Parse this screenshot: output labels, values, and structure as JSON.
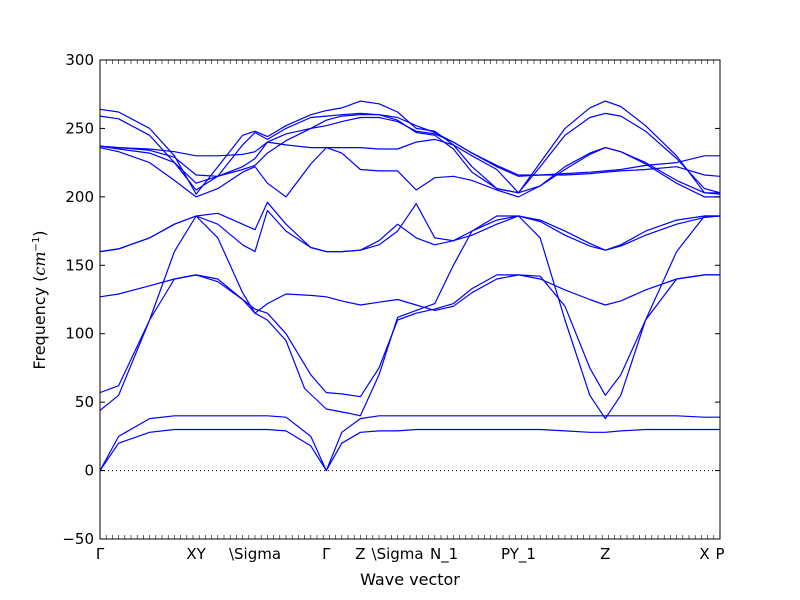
{
  "chart_data": {
    "type": "line",
    "xlabel": "Wave vector",
    "ylabel": "Frequency (",
    "ylabel_unit_base": "cm",
    "ylabel_unit_exp": "−1",
    "ylabel_close": ")",
    "ylim": [
      -50,
      300
    ],
    "yticks": [
      -50,
      0,
      50,
      100,
      150,
      200,
      250,
      300
    ],
    "xlim": [
      0,
      100
    ],
    "xticks": [
      {
        "label": "Γ",
        "x": 0
      },
      {
        "label": "XY",
        "x": 15.5
      },
      {
        "label": "\\Sigma",
        "x": 25.0
      },
      {
        "label": "Γ",
        "x": 36.5
      },
      {
        "label": "Z",
        "x": 42.0
      },
      {
        "label": "\\Sigma",
        "x": 48.0
      },
      {
        "label": "N_1",
        "x": 55.5
      },
      {
        "label": "PY_1",
        "x": 67.5
      },
      {
        "label": "Z",
        "x": 81.5
      },
      {
        "label": "X",
        "x": 97.5
      },
      {
        "label": "P",
        "x": 100
      }
    ],
    "zero_line": 0,
    "line_color": "#0000ff",
    "series": [
      {
        "x": [
          0,
          3,
          8,
          12,
          15.5,
          19,
          23,
          25,
          27,
          30,
          34,
          36.5,
          39,
          42,
          45,
          48,
          51,
          54,
          57,
          60,
          64,
          67.5,
          71,
          75,
          79,
          81.5,
          84,
          88,
          93,
          97.5,
          100
        ],
        "y": [
          0,
          20,
          28,
          30,
          30,
          30,
          30,
          30,
          30,
          29,
          18,
          0,
          20,
          28,
          29,
          29,
          30,
          30,
          30,
          30,
          30,
          30,
          30,
          29,
          28,
          28,
          29,
          30,
          30,
          30,
          30
        ]
      },
      {
        "x": [
          0,
          3,
          8,
          12,
          15.5,
          19,
          23,
          25,
          27,
          30,
          34,
          36.5,
          39,
          42,
          45,
          48,
          51,
          54,
          57,
          60,
          64,
          67.5,
          71,
          75,
          79,
          81.5,
          84,
          88,
          93,
          97.5,
          100
        ],
        "y": [
          0,
          25,
          38,
          40,
          40,
          40,
          40,
          40,
          40,
          39,
          25,
          0,
          28,
          38,
          40,
          40,
          40,
          40,
          40,
          40,
          40,
          40,
          40,
          40,
          40,
          40,
          40,
          40,
          40,
          39,
          39
        ]
      },
      {
        "x": [
          0,
          3,
          8,
          12,
          15.5,
          19,
          23,
          25,
          27,
          30,
          33,
          36.5,
          40,
          42,
          45,
          48,
          51,
          54,
          57,
          60,
          64,
          67.5,
          71,
          75,
          79,
          81.5,
          84,
          88,
          93,
          97.5,
          100
        ],
        "y": [
          44,
          55,
          110,
          160,
          186,
          170,
          130,
          115,
          110,
          95,
          60,
          45,
          42,
          40,
          70,
          112,
          117,
          122,
          150,
          175,
          186,
          186,
          170,
          110,
          55,
          38,
          55,
          110,
          160,
          186,
          186
        ]
      },
      {
        "x": [
          0,
          3,
          8,
          12,
          15.5,
          19,
          23,
          25,
          27,
          30,
          34,
          36.5,
          39,
          42,
          45,
          48,
          51,
          54,
          57,
          60,
          64,
          67.5,
          71,
          75,
          79,
          81.5,
          84,
          88,
          93,
          97.5,
          100
        ],
        "y": [
          57,
          62,
          110,
          140,
          143,
          140,
          125,
          118,
          115,
          100,
          70,
          57,
          56,
          54,
          75,
          110,
          115,
          118,
          122,
          133,
          143,
          143,
          142,
          120,
          75,
          55,
          70,
          110,
          140,
          143,
          143
        ]
      },
      {
        "x": [
          0,
          3,
          8,
          12,
          15.5,
          19,
          23,
          25,
          27,
          30,
          34,
          36.5,
          39,
          42,
          45,
          48,
          51,
          54,
          57,
          60,
          64,
          67.5,
          71,
          75,
          79,
          81.5,
          84,
          88,
          93,
          97.5,
          100
        ],
        "y": [
          127,
          129,
          135,
          140,
          143,
          138,
          125,
          115,
          122,
          129,
          128,
          127,
          124,
          121,
          123,
          125,
          121,
          117,
          120,
          130,
          140,
          143,
          140,
          132,
          125,
          121,
          124,
          132,
          140,
          143,
          143
        ]
      },
      {
        "x": [
          0,
          3,
          8,
          12,
          15.5,
          19,
          23,
          25,
          27,
          30,
          34,
          36.5,
          39,
          42,
          45,
          48,
          51,
          54,
          57,
          60,
          64,
          67.5,
          71,
          75,
          79,
          81.5,
          84,
          88,
          93,
          97.5,
          100
        ],
        "y": [
          160,
          162,
          170,
          180,
          186,
          180,
          165,
          160,
          190,
          175,
          163,
          160,
          160,
          161,
          165,
          175,
          195,
          170,
          168,
          172,
          180,
          186,
          182,
          172,
          164,
          161,
          164,
          172,
          180,
          185,
          186
        ]
      },
      {
        "x": [
          0,
          3,
          8,
          12,
          15.5,
          19,
          23,
          25,
          27,
          30,
          34,
          36.5,
          39,
          42,
          45,
          48,
          51,
          54,
          57,
          60,
          64,
          67.5,
          71,
          75,
          79,
          81.5,
          84,
          88,
          93,
          97.5,
          100
        ],
        "y": [
          160,
          162,
          170,
          180,
          186,
          188,
          180,
          176,
          196,
          180,
          163,
          160,
          160,
          161,
          168,
          180,
          170,
          165,
          168,
          175,
          183,
          186,
          183,
          175,
          166,
          161,
          165,
          175,
          183,
          186,
          186
        ]
      },
      {
        "x": [
          0,
          3,
          8,
          12,
          15.5,
          19,
          23,
          25,
          27,
          30,
          34,
          36.5,
          39,
          42,
          45,
          48,
          51,
          54,
          57,
          60,
          64,
          67.5,
          71,
          75,
          79,
          81.5,
          84,
          88,
          93,
          97.5,
          100
        ],
        "y": [
          236,
          233,
          225,
          212,
          200,
          206,
          218,
          222,
          210,
          200,
          224,
          236,
          232,
          220,
          219,
          219,
          205,
          214,
          215,
          212,
          205,
          200,
          208,
          220,
          231,
          236,
          233,
          224,
          210,
          200,
          200
        ]
      },
      {
        "x": [
          0,
          3,
          8,
          12,
          15.5,
          19,
          23,
          25,
          27,
          30,
          34,
          36.5,
          39,
          42,
          45,
          48,
          51,
          54,
          57,
          60,
          64,
          67.5,
          71,
          75,
          79,
          81.5,
          84,
          88,
          93,
          97.5,
          100
        ],
        "y": [
          237,
          235,
          232,
          225,
          210,
          215,
          222,
          228,
          240,
          238,
          236,
          236,
          236,
          236,
          235,
          235,
          240,
          242,
          238,
          230,
          220,
          203,
          208,
          222,
          232,
          236,
          233,
          225,
          212,
          203,
          202
        ]
      },
      {
        "x": [
          0,
          3,
          8,
          12,
          15.5,
          19,
          23,
          25,
          27,
          30,
          34,
          36.5,
          39,
          42,
          45,
          48,
          51,
          54,
          57,
          60,
          64,
          67.5,
          71,
          75,
          79,
          81.5,
          84,
          88,
          93,
          97.5,
          100
        ],
        "y": [
          237,
          236,
          235,
          233,
          230,
          230,
          231,
          233,
          240,
          246,
          250,
          252,
          255,
          258,
          258,
          255,
          248,
          246,
          240,
          232,
          223,
          216,
          216,
          217,
          218,
          219,
          220,
          223,
          225,
          230,
          230
        ]
      },
      {
        "x": [
          0,
          3,
          8,
          12,
          15.5,
          19,
          23,
          25,
          27,
          30,
          34,
          36.5,
          39,
          42,
          45,
          48,
          51,
          54,
          57,
          60,
          64,
          67.5,
          71,
          75,
          79,
          81.5,
          84,
          88,
          93,
          97.5,
          100
        ],
        "y": [
          237,
          236,
          234,
          229,
          216,
          215,
          220,
          223,
          232,
          241,
          250,
          256,
          259,
          260,
          260,
          258,
          252,
          247,
          240,
          232,
          222,
          215,
          216,
          216,
          217,
          218,
          219,
          220,
          222,
          216,
          215
        ]
      },
      {
        "x": [
          0,
          3,
          8,
          12,
          15.5,
          19,
          23,
          25,
          27,
          30,
          34,
          36.5,
          39,
          42,
          45,
          48,
          51,
          54,
          57,
          60,
          64,
          67.5,
          71,
          75,
          79,
          81.5,
          84,
          88,
          93,
          97.5,
          100
        ],
        "y": [
          259,
          257,
          245,
          225,
          205,
          215,
          238,
          247,
          242,
          250,
          258,
          259,
          260,
          261,
          260,
          256,
          247,
          245,
          235,
          218,
          206,
          203,
          222,
          245,
          258,
          261,
          259,
          248,
          228,
          206,
          203
        ]
      },
      {
        "x": [
          0,
          3,
          8,
          12,
          15.5,
          19,
          23,
          25,
          27,
          30,
          34,
          36.5,
          39,
          42,
          45,
          48,
          51,
          54,
          57,
          60,
          64,
          67.5,
          71,
          75,
          79,
          81.5,
          84,
          88,
          93,
          97.5,
          100
        ],
        "y": [
          264,
          262,
          250,
          230,
          202,
          222,
          245,
          248,
          244,
          252,
          260,
          263,
          265,
          270,
          268,
          262,
          250,
          248,
          238,
          222,
          206,
          203,
          225,
          250,
          265,
          270,
          266,
          252,
          230,
          203,
          203
        ]
      }
    ]
  }
}
